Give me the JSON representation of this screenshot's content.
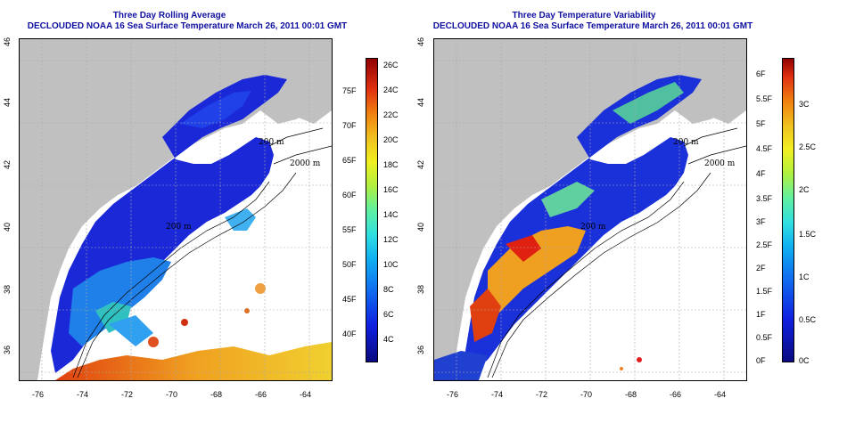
{
  "left_panel": {
    "title_line1": "Three Day Rolling Average",
    "title_line2": "DECLOUDED NOAA 16 Sea Surface Temperature March 26, 2011 00:01 GMT",
    "colorbar_f": [
      "40F",
      "45F",
      "50F",
      "55F",
      "60F",
      "65F",
      "70F",
      "75F"
    ],
    "colorbar_c": [
      "4C",
      "6C",
      "8C",
      "10C",
      "12C",
      "14C",
      "16C",
      "18C",
      "20C",
      "22C",
      "24C",
      "26C"
    ],
    "contours": [
      "200 m",
      "2000 m",
      "200 m",
      "2000 m",
      "200 m"
    ]
  },
  "right_panel": {
    "title_line1": "Three Day Temperature Variability",
    "title_line2": "DECLOUDED NOAA 16 Sea Surface Temperature March 26, 2011 00:01 GMT",
    "colorbar_f": [
      "0F",
      "0.5F",
      "1F",
      "1.5F",
      "2F",
      "2.5F",
      "3F",
      "3.5F",
      "4F",
      "4.5F",
      "5F",
      "5.5F",
      "6F"
    ],
    "colorbar_c": [
      "0C",
      "0.5C",
      "1C",
      "1.5C",
      "2C",
      "2.5C",
      "3C"
    ],
    "contours": [
      "200 m",
      "2000 m",
      "200 m",
      "2000 m",
      "200 m"
    ]
  },
  "lon_ticks": [
    "-76",
    "-74",
    "-72",
    "-70",
    "-68",
    "-66",
    "-64"
  ],
  "lat_ticks": [
    "36",
    "38",
    "40",
    "42",
    "44",
    "46"
  ],
  "colors": {
    "land": "#c0c0c0",
    "cold": "#1a28d8",
    "title": "#1010a0"
  }
}
